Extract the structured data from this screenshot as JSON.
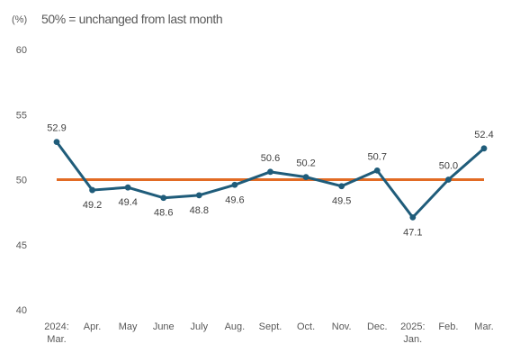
{
  "chart_data": {
    "type": "line",
    "title": "",
    "subtitle": "50% = unchanged from last month",
    "unit_label": "(%)",
    "ylabel": "",
    "xlabel": "",
    "ylim": [
      40,
      60
    ],
    "yticks": [
      40,
      45,
      50,
      55,
      60
    ],
    "grid": false,
    "categories": [
      [
        "2024:",
        "Mar."
      ],
      [
        "Apr."
      ],
      [
        "May"
      ],
      [
        "June"
      ],
      [
        "July"
      ],
      [
        "Aug."
      ],
      [
        "Sept."
      ],
      [
        "Oct."
      ],
      [
        "Nov."
      ],
      [
        "Dec."
      ],
      [
        "2025:",
        "Jan."
      ],
      [
        "Feb."
      ],
      [
        "Mar."
      ]
    ],
    "series": [
      {
        "values": [
          52.9,
          49.2,
          49.4,
          48.6,
          48.8,
          49.6,
          50.6,
          50.2,
          49.5,
          50.7,
          47.1,
          50.0,
          52.4
        ],
        "labels": [
          "52.9",
          "49.2",
          "49.4",
          "48.6",
          "48.8",
          "49.6",
          "50.6",
          "50.2",
          "49.5",
          "50.7",
          "47.1",
          "50.0",
          "52.4"
        ],
        "label_positions": [
          "above",
          "below",
          "below",
          "below",
          "below",
          "below",
          "above",
          "above",
          "below",
          "above",
          "below",
          "above",
          "above"
        ],
        "color": "#1f5c7a",
        "markers": true
      }
    ],
    "reference_line": {
      "value": 50,
      "color": "#e26b24"
    }
  }
}
